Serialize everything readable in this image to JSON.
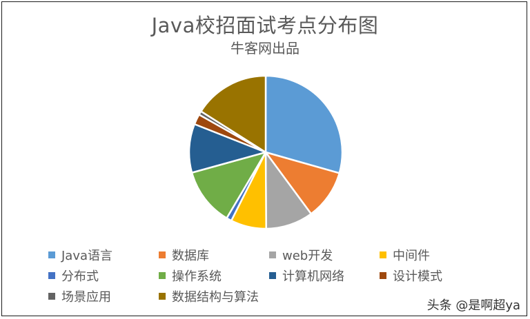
{
  "chart_data": {
    "type": "pie",
    "title": "Java校招面试考点分布图",
    "subtitle": "牛客网出品",
    "legend_position": "bottom",
    "start_angle_deg": 0,
    "direction": "clockwise",
    "categories": [
      "Java语言",
      "数据库",
      "web开发",
      "中间件",
      "分布式",
      "操作系统",
      "计算机网络",
      "设计模式",
      "场景应用",
      "数据结构与算法"
    ],
    "values": [
      29.4,
      10.5,
      10.0,
      7.5,
      1.1,
      12.2,
      10.3,
      2.2,
      0.8,
      16.0
    ],
    "unit": "percent (estimated)",
    "colors": [
      "#5B9BD5",
      "#ED7D31",
      "#A5A5A5",
      "#FFC000",
      "#4472C4",
      "#70AD47",
      "#255E91",
      "#9E480E",
      "#636363",
      "#997300"
    ]
  },
  "watermark": "头条 @是啊超ya"
}
